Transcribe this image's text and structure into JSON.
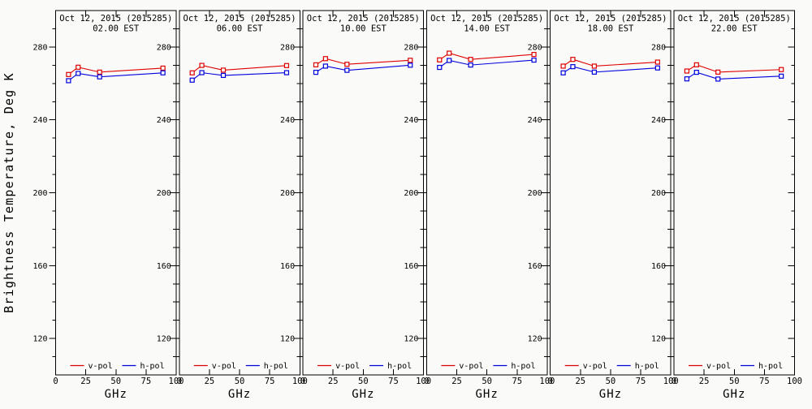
{
  "figure": {
    "background": "#fafaf8",
    "axis_color": "#000000",
    "ylabel": "Brightness Temperature, Deg K"
  },
  "chart_data": {
    "type": "line",
    "layout": "6 side-by-side panels, one per observation time, shared y scale, legend inside bottom of each panel",
    "marker": "open-square",
    "grid": false,
    "x": [
      10.7,
      18.7,
      36.5,
      89.0
    ],
    "xlabel": "GHz",
    "xlim": [
      0,
      100
    ],
    "xticks": [
      0,
      25,
      50,
      75,
      100
    ],
    "xtick_labels": [
      "0",
      "25",
      "50",
      "75",
      "100"
    ],
    "top_axis_ticks": [
      25,
      50,
      75
    ],
    "ylim": [
      100,
      300
    ],
    "yticks": [
      120,
      160,
      200,
      240,
      280
    ],
    "ytick_labels": [
      "120",
      "160",
      "200",
      "240",
      "280"
    ],
    "y_minor_step": 10,
    "legend": [
      {
        "label": "v-pol",
        "color": "#dd0000"
      },
      {
        "label": "h-pol",
        "color": "#0000dd"
      }
    ],
    "panels": [
      {
        "title": "Oct 12, 2015 (2015285)",
        "subtitle": "02.00 EST",
        "series": [
          {
            "name": "v-pol",
            "values": [
              264.9,
              268.9,
              266.2,
              268.4
            ]
          },
          {
            "name": "h-pol",
            "values": [
              261.5,
              265.5,
              263.6,
              265.8
            ]
          }
        ]
      },
      {
        "title": "Oct 12, 2015 (2015285)",
        "subtitle": "06.00 EST",
        "series": [
          {
            "name": "v-pol",
            "values": [
              265.8,
              269.9,
              267.3,
              269.8
            ]
          },
          {
            "name": "h-pol",
            "values": [
              261.8,
              265.9,
              264.4,
              265.9
            ]
          }
        ]
      },
      {
        "title": "Oct 12, 2015 (2015285)",
        "subtitle": "10.00 EST",
        "series": [
          {
            "name": "v-pol",
            "values": [
              270.2,
              273.6,
              270.5,
              272.7
            ]
          },
          {
            "name": "h-pol",
            "values": [
              266.1,
              269.5,
              267.2,
              270.0
            ]
          }
        ]
      },
      {
        "title": "Oct 12, 2015 (2015285)",
        "subtitle": "14.00 EST",
        "series": [
          {
            "name": "v-pol",
            "values": [
              272.9,
              276.6,
              273.2,
              275.9
            ]
          },
          {
            "name": "h-pol",
            "values": [
              268.8,
              272.6,
              270.1,
              272.8
            ]
          }
        ]
      },
      {
        "title": "Oct 12, 2015 (2015285)",
        "subtitle": "18.00 EST",
        "series": [
          {
            "name": "v-pol",
            "values": [
              269.5,
              273.2,
              269.5,
              271.7
            ]
          },
          {
            "name": "h-pol",
            "values": [
              265.8,
              269.2,
              266.2,
              268.5
            ]
          }
        ]
      },
      {
        "title": "Oct 12, 2015 (2015285)",
        "subtitle": "22.00 EST",
        "series": [
          {
            "name": "v-pol",
            "values": [
              266.8,
              270.2,
              266.2,
              267.6
            ]
          },
          {
            "name": "h-pol",
            "values": [
              262.5,
              266.1,
              262.4,
              264.0
            ]
          }
        ]
      }
    ]
  }
}
